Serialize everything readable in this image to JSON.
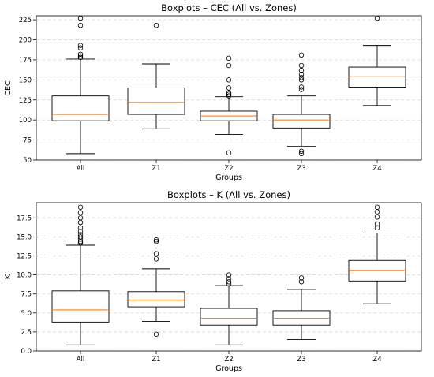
{
  "chart_data": [
    {
      "type": "boxplot",
      "title": "Boxplots – CEC (All vs. Zones)",
      "xlabel": "Groups",
      "ylabel": "CEC",
      "ylim": [
        50,
        230
      ],
      "yticks": [
        50,
        75,
        100,
        125,
        150,
        175,
        200,
        225
      ],
      "grid": "y-dashed",
      "categories": [
        "All",
        "Z1",
        "Z2",
        "Z3",
        "Z4"
      ],
      "boxes": [
        {
          "whisker_low": 58,
          "q1": 99,
          "median": 107,
          "q3": 130,
          "whisker_high": 176,
          "outliers": [
            178,
            180,
            182,
            190,
            193,
            218,
            227
          ]
        },
        {
          "whisker_low": 89,
          "q1": 107,
          "median": 122,
          "q3": 140,
          "whisker_high": 170,
          "outliers": [
            218
          ]
        },
        {
          "whisker_low": 82,
          "q1": 99,
          "median": 105,
          "q3": 111,
          "whisker_high": 129,
          "outliers": [
            59,
            130,
            132,
            134,
            140,
            150,
            168,
            177
          ]
        },
        {
          "whisker_low": 67,
          "q1": 90,
          "median": 100,
          "q3": 107,
          "whisker_high": 130,
          "outliers": [
            58,
            61,
            138,
            141,
            150,
            153,
            157,
            162,
            168,
            181
          ]
        },
        {
          "whisker_low": 118,
          "q1": 141,
          "median": 154,
          "q3": 166,
          "whisker_high": 193,
          "outliers": [
            227
          ]
        }
      ]
    },
    {
      "type": "boxplot",
      "title": "Boxplots – K (All vs. Zones)",
      "xlabel": "Groups",
      "ylabel": "K",
      "ylim": [
        0,
        19.5
      ],
      "yticks": [
        0.0,
        2.5,
        5.0,
        7.5,
        10.0,
        12.5,
        15.0,
        17.5
      ],
      "grid": "y-dashed",
      "categories": [
        "All",
        "Z1",
        "Z2",
        "Z3",
        "Z4"
      ],
      "boxes": [
        {
          "whisker_low": 0.8,
          "q1": 3.8,
          "median": 5.4,
          "q3": 7.9,
          "whisker_high": 13.9,
          "outliers": [
            14.2,
            14.4,
            14.7,
            15.0,
            15.3,
            15.7,
            16.2,
            16.9,
            17.5,
            18.2,
            18.9
          ]
        },
        {
          "whisker_low": 3.9,
          "q1": 5.8,
          "median": 6.7,
          "q3": 7.8,
          "whisker_high": 10.8,
          "outliers": [
            2.2,
            12.1,
            12.8,
            14.4,
            14.6
          ]
        },
        {
          "whisker_low": 0.8,
          "q1": 3.4,
          "median": 4.3,
          "q3": 5.6,
          "whisker_high": 8.6,
          "outliers": [
            8.8,
            9.1,
            9.5,
            10.0
          ]
        },
        {
          "whisker_low": 1.5,
          "q1": 3.4,
          "median": 4.3,
          "q3": 5.3,
          "whisker_high": 8.1,
          "outliers": [
            9.1,
            9.6
          ]
        },
        {
          "whisker_low": 6.2,
          "q1": 9.2,
          "median": 10.6,
          "q3": 11.9,
          "whisker_high": 15.5,
          "outliers": [
            16.2,
            16.7,
            17.6,
            18.3,
            18.9
          ]
        }
      ]
    }
  ]
}
